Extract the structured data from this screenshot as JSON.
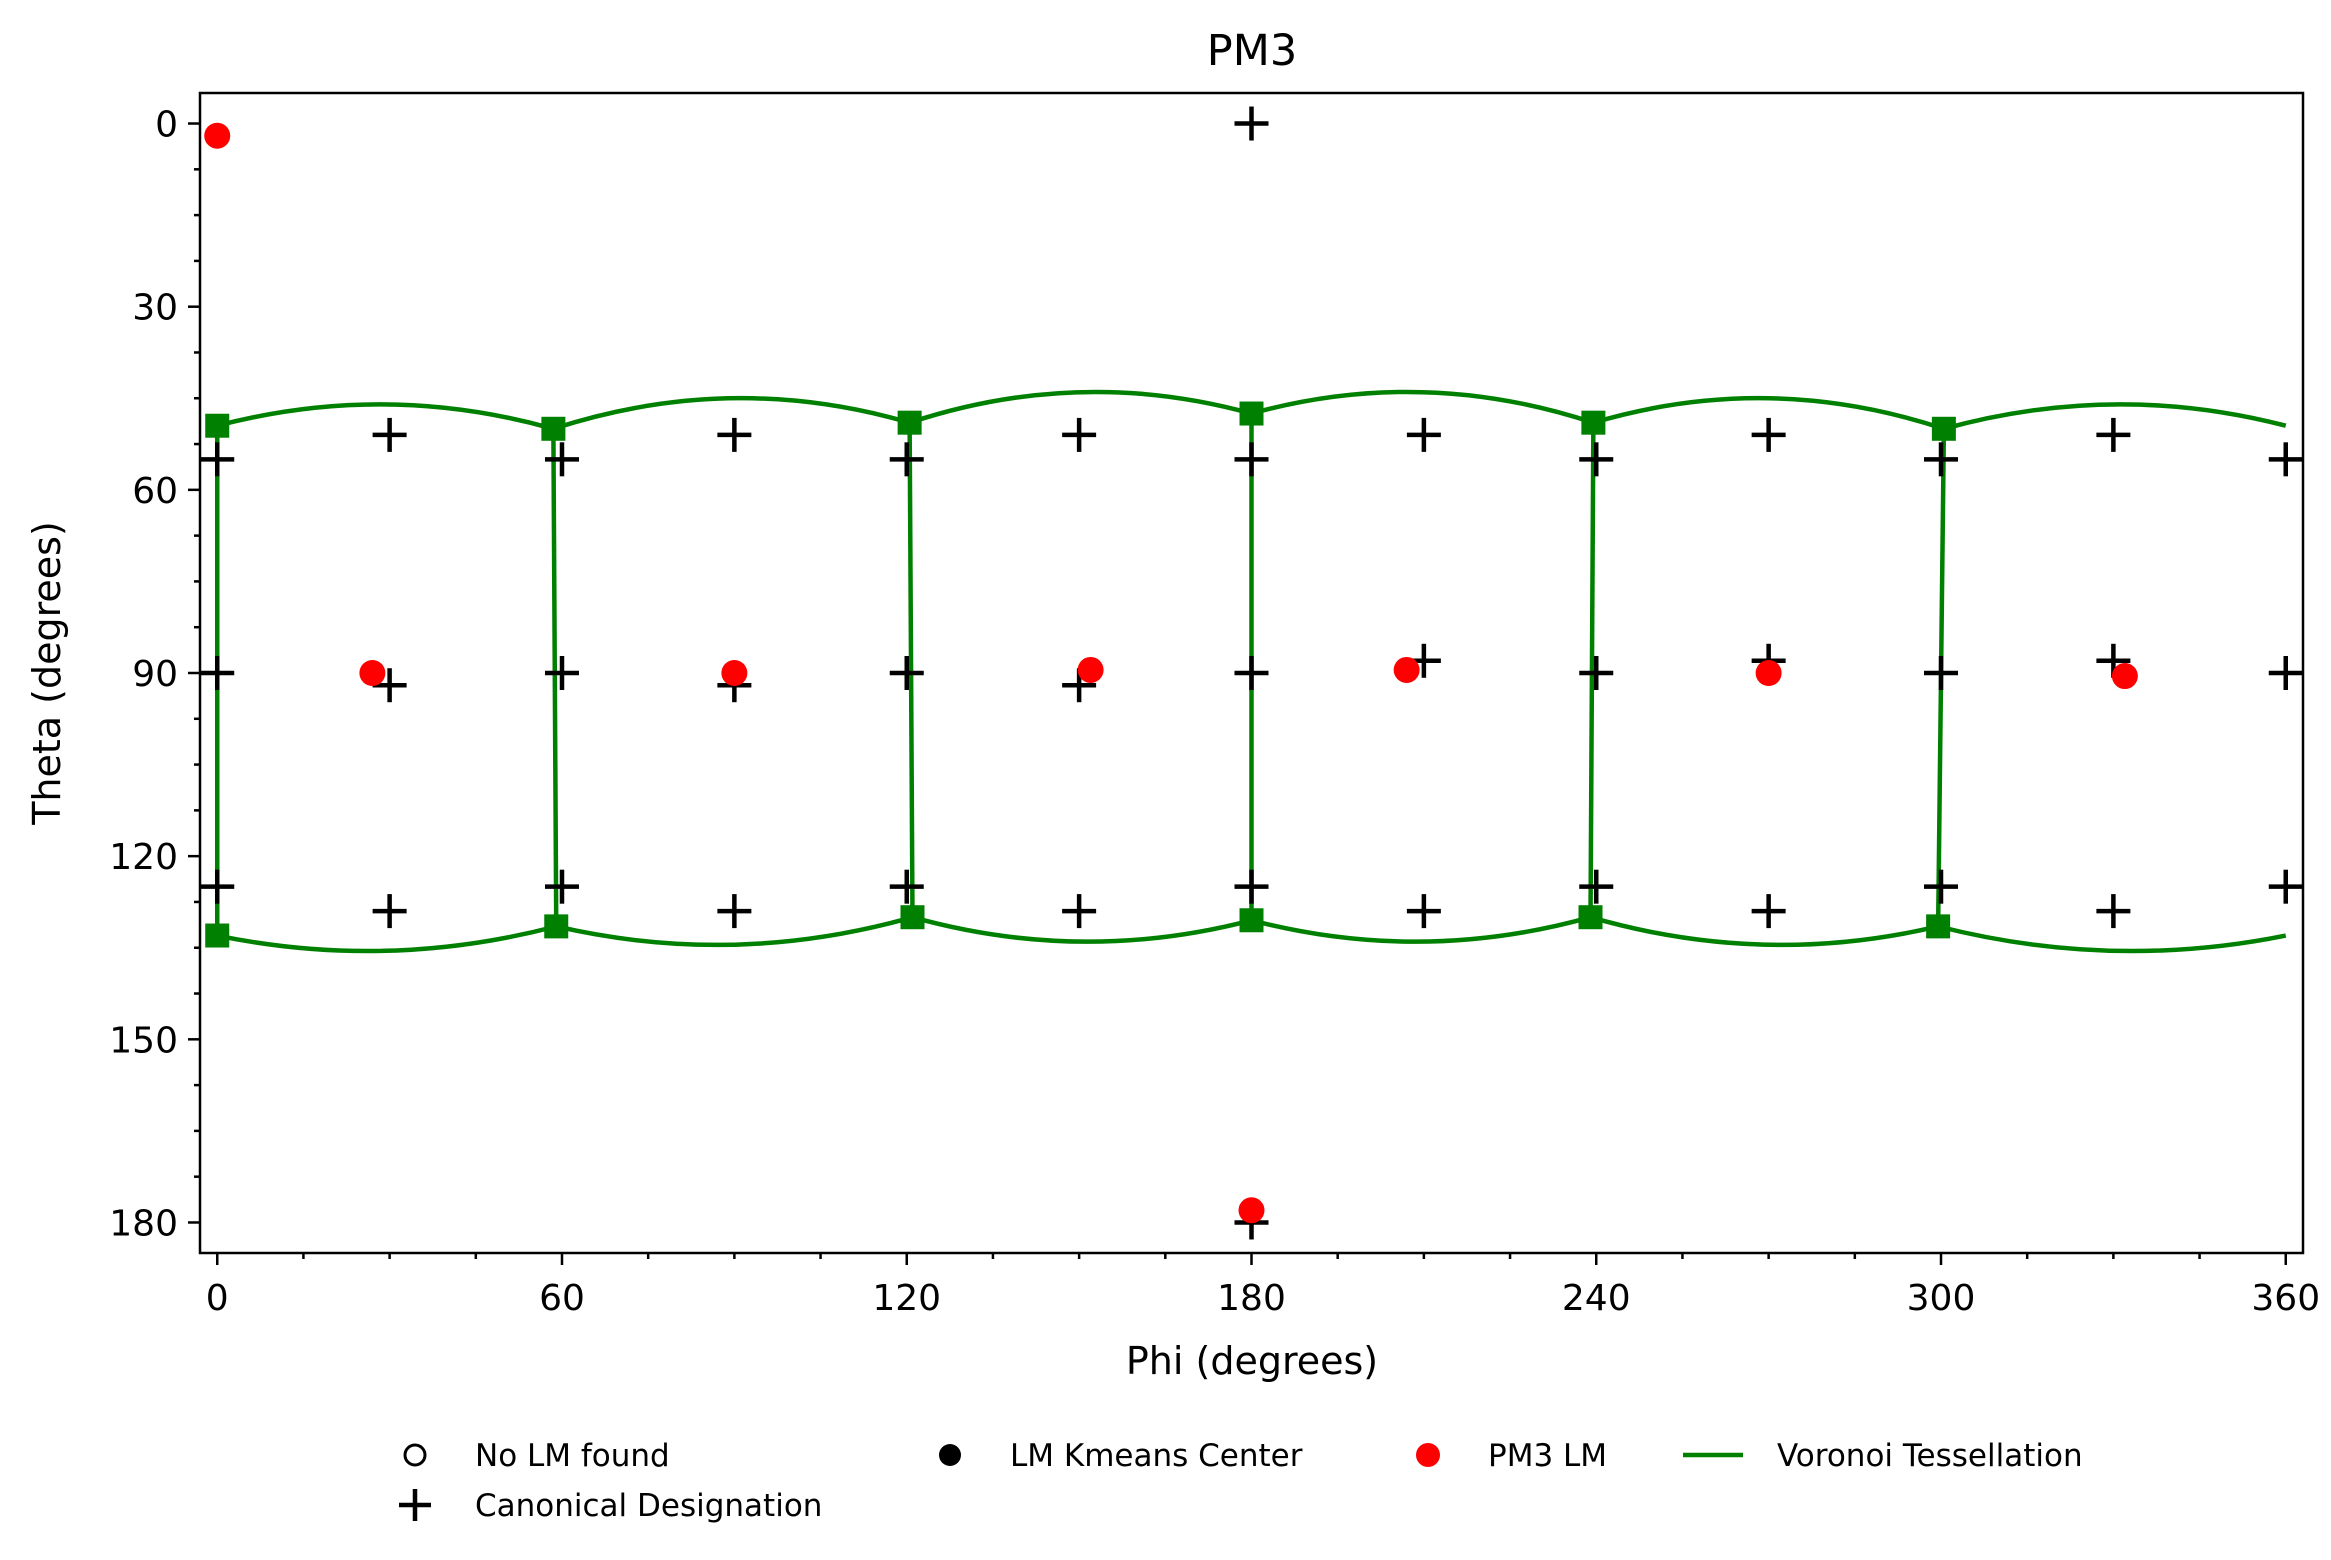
{
  "chart_data": {
    "type": "scatter",
    "title": "PM3",
    "xlabel": "Phi (degrees)",
    "ylabel": "Theta (degrees)",
    "xlim": [
      -3,
      363
    ],
    "ylim": [
      185,
      -5
    ],
    "y_inverted": true,
    "grid": false,
    "x_ticks": [
      0,
      60,
      120,
      180,
      240,
      300,
      360
    ],
    "y_ticks": [
      0,
      30,
      60,
      90,
      120,
      150,
      180
    ],
    "legend_position": "bottom-center",
    "legend": [
      {
        "label": "No LM found",
        "marker": "open-circle"
      },
      {
        "label": "LM Kmeans Center",
        "marker": "filled-circle"
      },
      {
        "label": "PM3 LM",
        "marker": "red-circle"
      },
      {
        "label": "Voronoi Tessellation",
        "marker": "green-line"
      },
      {
        "label": "Canonical Designation",
        "marker": "plus"
      }
    ],
    "colors": {
      "lm": "#ff0000",
      "voronoi": "#008000",
      "canonical": "#000000"
    },
    "canonical_points": [
      [
        180,
        0
      ],
      [
        180,
        180
      ],
      [
        30,
        51
      ],
      [
        90,
        51
      ],
      [
        150,
        51
      ],
      [
        210,
        51
      ],
      [
        270,
        51
      ],
      [
        330,
        51
      ],
      [
        0,
        55
      ],
      [
        60,
        55
      ],
      [
        120,
        55
      ],
      [
        180,
        55
      ],
      [
        240,
        55
      ],
      [
        300,
        55
      ],
      [
        360,
        55
      ],
      [
        0,
        90
      ],
      [
        60,
        90
      ],
      [
        120,
        90
      ],
      [
        180,
        90
      ],
      [
        240,
        90
      ],
      [
        300,
        90
      ],
      [
        360,
        90
      ],
      [
        30,
        92
      ],
      [
        90,
        92
      ],
      [
        150,
        92
      ],
      [
        210,
        88
      ],
      [
        270,
        88
      ],
      [
        330,
        88
      ],
      [
        0,
        125
      ],
      [
        60,
        125
      ],
      [
        120,
        125
      ],
      [
        180,
        125
      ],
      [
        240,
        125
      ],
      [
        300,
        125
      ],
      [
        360,
        125
      ],
      [
        30,
        129
      ],
      [
        90,
        129
      ],
      [
        150,
        129
      ],
      [
        210,
        129
      ],
      [
        270,
        129
      ],
      [
        330,
        129
      ]
    ],
    "pm3_lm_points": [
      [
        0,
        2
      ],
      [
        27,
        90
      ],
      [
        90,
        90
      ],
      [
        152,
        89.5
      ],
      [
        207,
        89.5
      ],
      [
        270,
        90
      ],
      [
        332,
        90.5
      ],
      [
        180,
        178
      ]
    ],
    "voronoi_vertices_top": [
      [
        0,
        49.5
      ],
      [
        58.5,
        50
      ],
      [
        120.5,
        49
      ],
      [
        180,
        47.5
      ],
      [
        239.5,
        49
      ],
      [
        300.5,
        50
      ]
    ],
    "voronoi_vertices_bottom": [
      [
        0,
        133
      ],
      [
        59,
        131.5
      ],
      [
        121,
        130
      ],
      [
        180,
        130.5
      ],
      [
        239,
        130
      ],
      [
        299.5,
        131.5
      ]
    ],
    "voronoi_top_arc_peaks": [
      46,
      45,
      44,
      44,
      45,
      46
    ],
    "voronoi_bottom_arc_troughs": [
      135.5,
      134.5,
      134,
      134,
      134.5,
      135.5
    ],
    "voronoi_top_end": [
      360,
      49.5
    ],
    "voronoi_bottom_end": [
      360,
      133
    ]
  }
}
